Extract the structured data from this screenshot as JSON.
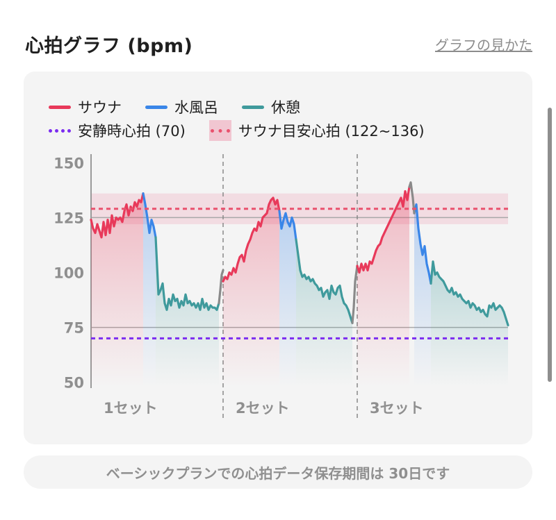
{
  "header": {
    "title": "心拍グラフ (bpm)",
    "help_link": "グラフの見かた"
  },
  "legend": {
    "sauna": "サウナ",
    "cold_bath": "水風呂",
    "rest": "休憩",
    "resting_hr": "安静時心拍 (70)",
    "sauna_target": "サウナ目安心拍 (122~136)"
  },
  "colors": {
    "sauna": "#e8395a",
    "cold_bath": "#3a86e8",
    "rest": "#3f9a9c",
    "transition": "#8a8a8a",
    "resting_line": "#7b2cf0",
    "target_line": "#e9516d"
  },
  "footer": {
    "note": "ベーシックプランでの心拍データ保存期間は 30日です"
  },
  "chart_data": {
    "type": "line",
    "title": "心拍グラフ (bpm)",
    "ylim": [
      48,
      152
    ],
    "yticks": [
      150,
      125,
      100,
      75,
      50
    ],
    "grid": {
      "hlines": [
        125,
        75
      ]
    },
    "reference_lines": [
      {
        "name": "安静時心拍",
        "value": 70,
        "style": "dotted"
      },
      {
        "name": "サウナ目安心拍",
        "value": 129,
        "style": "dotted"
      }
    ],
    "band": {
      "name": "サウナ目安心拍",
      "range": [
        122,
        136
      ]
    },
    "sets": [
      {
        "label": "1セット",
        "sauna": [
          [
            0,
            124
          ],
          [
            3,
            120
          ],
          [
            6,
            118
          ],
          [
            9,
            122
          ],
          [
            12,
            119
          ],
          [
            15,
            116
          ],
          [
            18,
            123
          ],
          [
            21,
            117
          ],
          [
            24,
            124
          ],
          [
            27,
            118
          ],
          [
            30,
            126
          ],
          [
            33,
            121
          ],
          [
            36,
            125
          ],
          [
            39,
            124
          ],
          [
            42,
            125
          ],
          [
            45,
            123
          ],
          [
            48,
            128
          ],
          [
            51,
            131
          ],
          [
            54,
            126
          ],
          [
            57,
            130
          ],
          [
            60,
            128
          ],
          [
            63,
            132
          ],
          [
            66,
            130
          ],
          [
            69,
            133
          ],
          [
            72,
            132
          ],
          [
            75,
            136
          ]
        ],
        "cold": [
          [
            75,
            136
          ],
          [
            78,
            131
          ],
          [
            81,
            125
          ],
          [
            84,
            118
          ],
          [
            87,
            124
          ],
          [
            90,
            121
          ],
          [
            93,
            116
          ]
        ],
        "rest": [
          [
            93,
            116
          ],
          [
            95,
            103
          ],
          [
            97,
            90
          ],
          [
            100,
            92
          ],
          [
            103,
            95
          ],
          [
            106,
            86
          ],
          [
            109,
            83
          ],
          [
            112,
            88
          ],
          [
            115,
            85
          ],
          [
            118,
            90
          ],
          [
            121,
            87
          ],
          [
            124,
            88
          ],
          [
            127,
            84
          ],
          [
            130,
            87
          ],
          [
            133,
            85
          ],
          [
            136,
            90
          ],
          [
            139,
            86
          ],
          [
            142,
            87
          ],
          [
            145,
            85
          ],
          [
            148,
            86
          ],
          [
            151,
            84
          ],
          [
            154,
            86
          ],
          [
            157,
            83
          ],
          [
            160,
            88
          ],
          [
            163,
            84
          ],
          [
            166,
            86
          ],
          [
            169,
            83
          ],
          [
            172,
            85
          ],
          [
            175,
            84
          ],
          [
            178,
            84
          ],
          [
            181,
            83
          ],
          [
            184,
            86
          ]
        ],
        "transition": [
          [
            184,
            86
          ],
          [
            186,
            92
          ],
          [
            188,
            99
          ],
          [
            190,
            101
          ]
        ]
      },
      {
        "label": "2セット",
        "sauna": [
          [
            190,
            96
          ],
          [
            193,
            98
          ],
          [
            196,
            97
          ],
          [
            199,
            100
          ],
          [
            202,
            99
          ],
          [
            205,
            102
          ],
          [
            208,
            100
          ],
          [
            211,
            104
          ],
          [
            214,
            107
          ],
          [
            217,
            108
          ],
          [
            220,
            105
          ],
          [
            223,
            110
          ],
          [
            226,
            113
          ],
          [
            229,
            115
          ],
          [
            232,
            118
          ],
          [
            235,
            120
          ],
          [
            238,
            119
          ],
          [
            241,
            123
          ],
          [
            244,
            121
          ],
          [
            247,
            125
          ],
          [
            250,
            126
          ],
          [
            253,
            127
          ],
          [
            256,
            131
          ],
          [
            259,
            133
          ],
          [
            262,
            134
          ],
          [
            265,
            131
          ],
          [
            268,
            133
          ],
          [
            271,
            128
          ]
        ],
        "cold": [
          [
            271,
            128
          ],
          [
            274,
            120
          ],
          [
            277,
            124
          ],
          [
            280,
            127
          ],
          [
            283,
            123
          ],
          [
            286,
            121
          ],
          [
            289,
            125
          ],
          [
            292,
            122
          ],
          [
            295,
            115
          ]
        ],
        "rest": [
          [
            295,
            115
          ],
          [
            298,
            108
          ],
          [
            301,
            101
          ],
          [
            304,
            98
          ],
          [
            307,
            99
          ],
          [
            310,
            97
          ],
          [
            313,
            98
          ],
          [
            316,
            96
          ],
          [
            319,
            97
          ],
          [
            322,
            95
          ],
          [
            325,
            94
          ],
          [
            328,
            92
          ],
          [
            331,
            93
          ],
          [
            334,
            89
          ],
          [
            337,
            91
          ],
          [
            340,
            92
          ],
          [
            343,
            88
          ],
          [
            346,
            94
          ],
          [
            349,
            91
          ],
          [
            352,
            90
          ],
          [
            355,
            93
          ],
          [
            358,
            94
          ],
          [
            361,
            89
          ],
          [
            364,
            86
          ],
          [
            367,
            85
          ],
          [
            370,
            83
          ],
          [
            373,
            80
          ],
          [
            376,
            77
          ]
        ],
        "transition": [
          [
            376,
            77
          ],
          [
            378,
            84
          ],
          [
            380,
            96
          ],
          [
            383,
            103
          ]
        ]
      },
      {
        "label": "3セット",
        "sauna": [
          [
            383,
            103
          ],
          [
            386,
            100
          ],
          [
            389,
            104
          ],
          [
            392,
            101
          ],
          [
            395,
            104
          ],
          [
            398,
            101
          ],
          [
            401,
            105
          ],
          [
            404,
            104
          ],
          [
            407,
            107
          ],
          [
            410,
            110
          ],
          [
            413,
            112
          ],
          [
            416,
            113
          ],
          [
            419,
            116
          ],
          [
            422,
            118
          ],
          [
            425,
            120
          ],
          [
            428,
            122
          ],
          [
            431,
            124
          ],
          [
            434,
            126
          ],
          [
            437,
            128
          ],
          [
            440,
            130
          ],
          [
            443,
            132
          ],
          [
            446,
            134
          ],
          [
            449,
            130
          ],
          [
            452,
            137
          ],
          [
            455,
            133
          ],
          [
            458,
            139
          ]
        ],
        "transition": [
          [
            458,
            139
          ],
          [
            460,
            141
          ],
          [
            463,
            134
          ],
          [
            465,
            127
          ]
        ],
        "cold": [
          [
            465,
            127
          ],
          [
            468,
            131
          ],
          [
            471,
            120
          ],
          [
            474,
            113
          ],
          [
            477,
            108
          ],
          [
            480,
            112
          ],
          [
            483,
            104
          ],
          [
            486,
            100
          ],
          [
            489,
            95
          ]
        ],
        "rest": [
          [
            489,
            95
          ],
          [
            492,
            105
          ],
          [
            495,
            99
          ],
          [
            498,
            100
          ],
          [
            501,
            98
          ],
          [
            504,
            97
          ],
          [
            507,
            96
          ],
          [
            510,
            94
          ],
          [
            513,
            92
          ],
          [
            516,
            91
          ],
          [
            519,
            93
          ],
          [
            522,
            90
          ],
          [
            525,
            91
          ],
          [
            528,
            89
          ],
          [
            531,
            90
          ],
          [
            534,
            88
          ],
          [
            537,
            87
          ],
          [
            540,
            86
          ],
          [
            543,
            87
          ],
          [
            546,
            84
          ],
          [
            549,
            86
          ],
          [
            552,
            85
          ],
          [
            555,
            83
          ],
          [
            558,
            84
          ],
          [
            561,
            82
          ],
          [
            564,
            83
          ],
          [
            567,
            81
          ],
          [
            570,
            80
          ],
          [
            573,
            85
          ],
          [
            576,
            84
          ],
          [
            579,
            86
          ],
          [
            582,
            83
          ],
          [
            585,
            84
          ],
          [
            588,
            85
          ],
          [
            591,
            84
          ],
          [
            594,
            82
          ],
          [
            597,
            79
          ],
          [
            600,
            76
          ]
        ]
      }
    ],
    "set_dividers": [
      190,
      383
    ]
  }
}
